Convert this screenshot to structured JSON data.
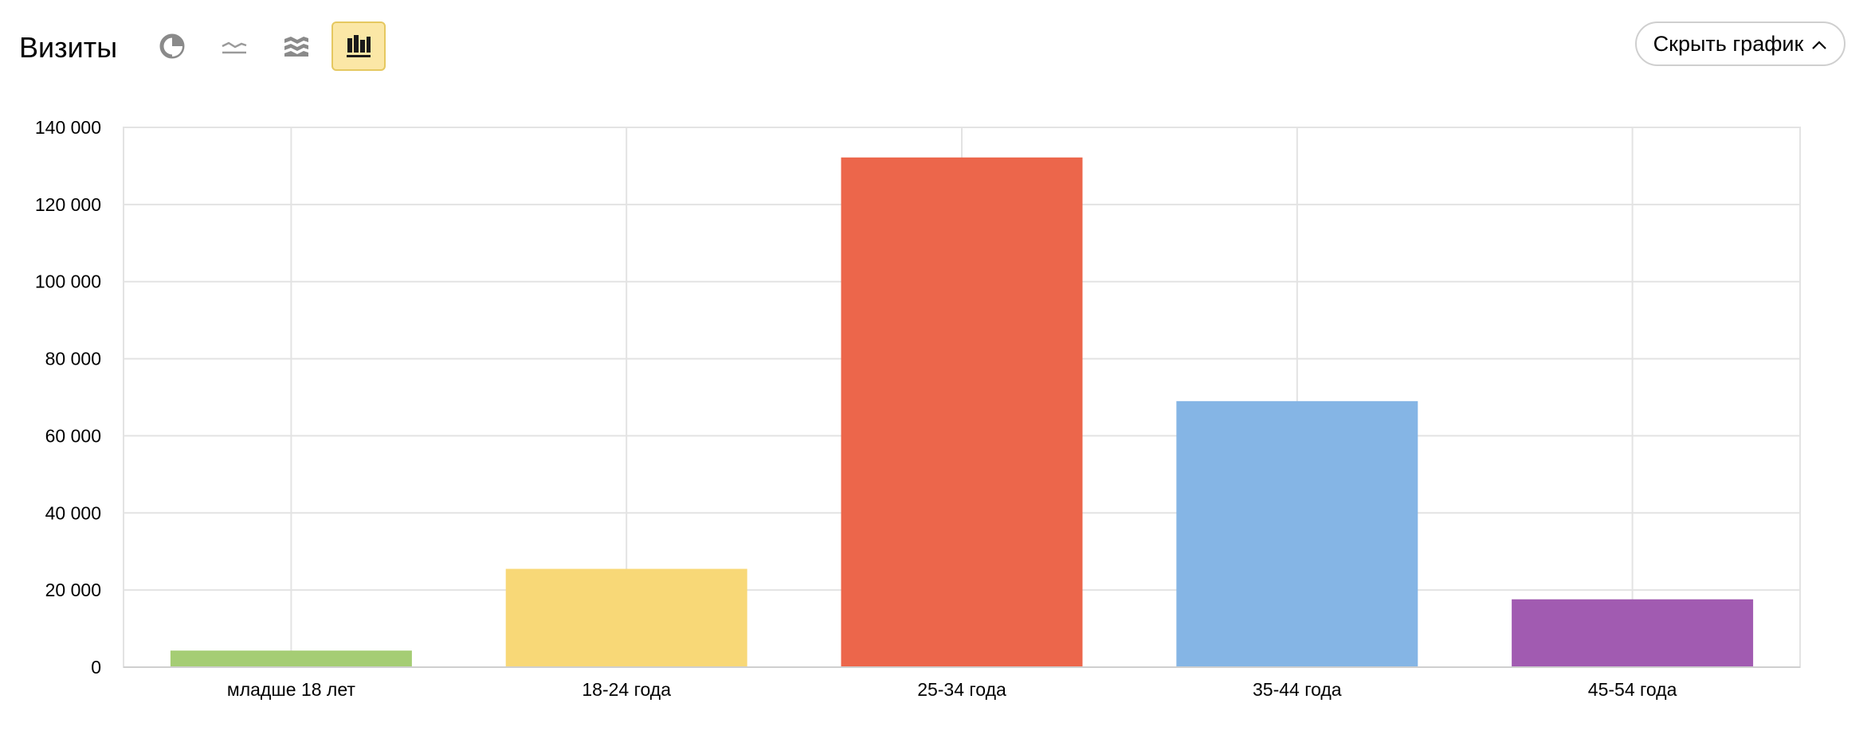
{
  "header": {
    "title": "Визиты",
    "view_buttons": [
      {
        "name": "pie-chart-view",
        "icon": "pie-chart-icon",
        "active": false
      },
      {
        "name": "line-chart-view",
        "icon": "line-chart-icon",
        "active": false
      },
      {
        "name": "area-chart-view",
        "icon": "area-chart-icon",
        "active": false
      },
      {
        "name": "bar-chart-view",
        "icon": "bar-chart-icon",
        "active": true
      }
    ],
    "hide_label": "Скрыть график",
    "hide_icon": "chevron-up-icon"
  },
  "colors": {
    "active_bg": "#fbe7a6",
    "active_border": "#e5c860",
    "grid": "#e3e3e3",
    "icon": "#8a8a8a"
  },
  "chart_data": {
    "type": "bar",
    "categories": [
      "младше 18 лет",
      "18-24 года",
      "25-34 года",
      "35-44 года",
      "45-54 года"
    ],
    "values": [
      4300,
      25500,
      132200,
      69000,
      17600
    ],
    "colors": [
      "#a5cd74",
      "#f8d877",
      "#ec664b",
      "#85b5e5",
      "#a15bb1"
    ],
    "ylim": [
      0,
      140000
    ],
    "yticks": [
      0,
      20000,
      40000,
      60000,
      80000,
      100000,
      120000,
      140000
    ],
    "ytick_labels": [
      "0",
      "20 000",
      "40 000",
      "60 000",
      "80 000",
      "100 000",
      "120 000",
      "140 000"
    ],
    "grid": true,
    "title": "",
    "xlabel": "",
    "ylabel": ""
  }
}
